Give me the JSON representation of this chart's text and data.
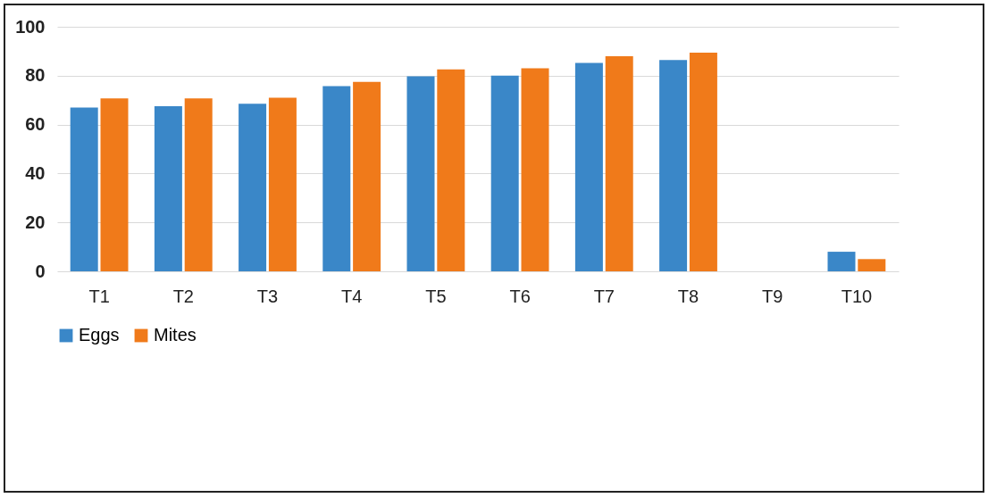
{
  "chart_data": {
    "type": "bar",
    "categories": [
      "T1",
      "T2",
      "T3",
      "T4",
      "T5",
      "T6",
      "T7",
      "T8",
      "T9",
      "T10"
    ],
    "series": [
      {
        "name": "Eggs",
        "color": "#3a87c8",
        "values": [
          67,
          67.5,
          68.5,
          75.7,
          79.7,
          80,
          85.2,
          86.4,
          0,
          8
        ]
      },
      {
        "name": "Mites",
        "color": "#f07a1a",
        "values": [
          70.7,
          70.7,
          71,
          77.5,
          82.6,
          83,
          88,
          89.4,
          0,
          5
        ]
      }
    ],
    "ylim": [
      0,
      100
    ],
    "yticks": [
      0,
      20,
      40,
      60,
      80,
      100
    ],
    "grid": "y",
    "legend": "bottom"
  }
}
